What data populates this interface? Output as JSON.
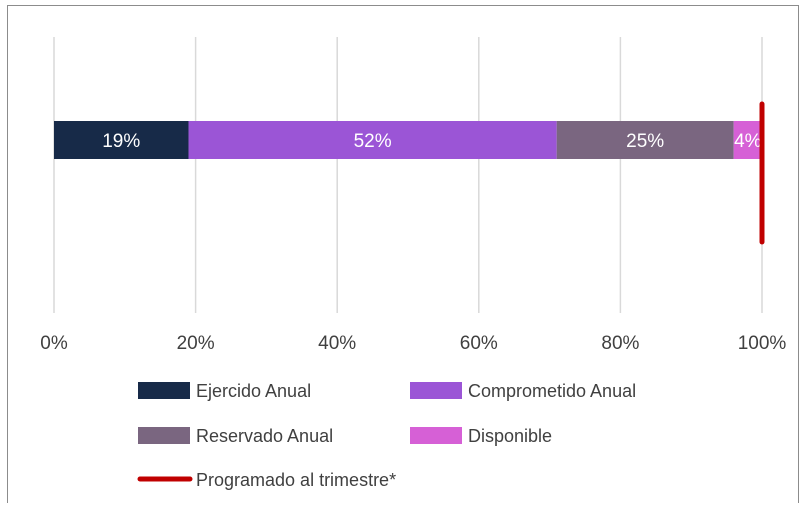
{
  "chart_data": {
    "type": "bar",
    "orientation": "horizontal",
    "stacked": true,
    "x_ticks": [
      "0%",
      "20%",
      "40%",
      "60%",
      "80%",
      "100%"
    ],
    "xlim": [
      0,
      100
    ],
    "grid": true,
    "legend_position": "bottom",
    "series": [
      {
        "name": "Ejercido Anual",
        "values": [
          19
        ],
        "label": "19%",
        "color": "#172a48"
      },
      {
        "name": "Comprometido Anual",
        "values": [
          52
        ],
        "label": "52%",
        "color": "#9b55d6"
      },
      {
        "name": "Reservado Anual",
        "values": [
          25
        ],
        "label": "25%",
        "color": "#7a6680"
      },
      {
        "name": "Disponible",
        "values": [
          4
        ],
        "label": "4%",
        "color": "#d660d6"
      }
    ],
    "reference_line": {
      "name": "Programado al trimestre*",
      "value": 100,
      "color": "#c00000"
    }
  }
}
